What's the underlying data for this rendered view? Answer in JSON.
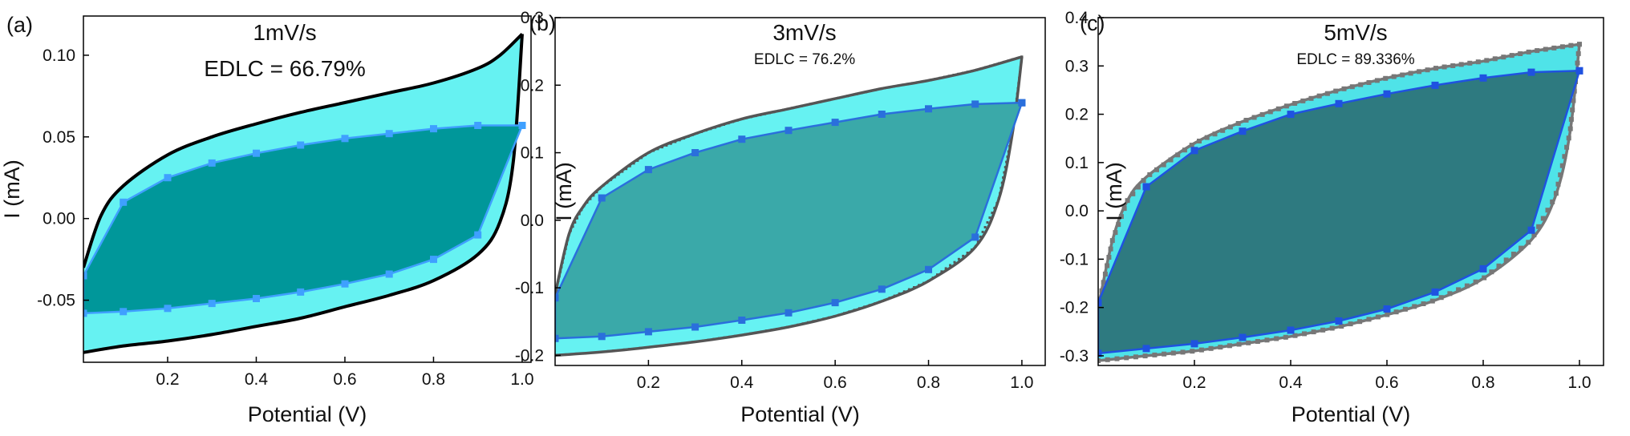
{
  "chart_data": [
    {
      "type": "line",
      "panel_label": "(a)",
      "annotation_rate": "1mV/s",
      "annotation_edlc": "EDLC = 66.79%",
      "xlabel": "Potential (V)",
      "ylabel": "I (mA)",
      "xlim": [
        0.01,
        1.02
      ],
      "ylim": [
        -0.088,
        0.124
      ],
      "xticks": [
        0.2,
        0.4,
        0.6,
        0.8,
        1.0
      ],
      "xtick_labels": [
        "0.2",
        "0.4",
        "0.6",
        "0.8",
        "1.0"
      ],
      "yticks": [
        -0.05,
        0.0,
        0.05,
        0.1
      ],
      "ytick_labels": [
        "-0.05",
        "0.00",
        "0.05",
        "0.10"
      ],
      "total_cv": {
        "upper": {
          "x": [
            0.01,
            0.05,
            0.1,
            0.2,
            0.3,
            0.4,
            0.5,
            0.6,
            0.7,
            0.8,
            0.9,
            0.95,
            1.0
          ],
          "y": [
            -0.03,
            0.002,
            0.02,
            0.039,
            0.05,
            0.058,
            0.065,
            0.071,
            0.077,
            0.083,
            0.092,
            0.1,
            0.113
          ]
        },
        "lower": {
          "x": [
            0.01,
            0.1,
            0.2,
            0.3,
            0.4,
            0.5,
            0.6,
            0.7,
            0.8,
            0.9,
            0.95,
            0.98,
            1.0
          ],
          "y": [
            -0.082,
            -0.078,
            -0.075,
            -0.071,
            -0.066,
            -0.061,
            -0.054,
            -0.047,
            -0.038,
            -0.022,
            -0.002,
            0.035,
            0.113
          ]
        }
      },
      "capacitive_cv": {
        "upper": {
          "x": [
            0.01,
            0.1,
            0.2,
            0.3,
            0.4,
            0.5,
            0.6,
            0.7,
            0.8,
            0.9,
            1.0
          ],
          "y": [
            -0.035,
            0.01,
            0.025,
            0.034,
            0.04,
            0.045,
            0.049,
            0.052,
            0.055,
            0.057,
            0.057
          ]
        },
        "lower": {
          "x": [
            0.01,
            0.1,
            0.2,
            0.3,
            0.4,
            0.5,
            0.6,
            0.7,
            0.8,
            0.9,
            1.0
          ],
          "y": [
            -0.058,
            -0.057,
            -0.055,
            -0.052,
            -0.049,
            -0.045,
            -0.04,
            -0.034,
            -0.025,
            -0.01,
            0.057
          ]
        }
      },
      "colors": {
        "outer_fill": "#66f2f2",
        "inner_fill": "#00979a",
        "outer_line": "#000000",
        "inner_line": "#3fa0ff",
        "inner_marker": "#3fa0ff"
      }
    },
    {
      "type": "line",
      "panel_label": "(b)",
      "annotation_rate": "3mV/s",
      "annotation_edlc": "EDLC = 76.2%",
      "xlabel": "Potential (V)",
      "ylabel": "I (mA)",
      "xlim": [
        0.0,
        1.05
      ],
      "ylim": [
        -0.215,
        0.3
      ],
      "xticks": [
        0.2,
        0.4,
        0.6,
        0.8,
        1.0
      ],
      "xtick_labels": [
        "0.2",
        "0.4",
        "0.6",
        "0.8",
        "1.0"
      ],
      "yticks": [
        -0.2,
        -0.1,
        0.0,
        0.1,
        0.2,
        0.3
      ],
      "ytick_labels": [
        "-0.2",
        "-0.1",
        "0.0",
        "0.1",
        "0.2",
        "0.3"
      ],
      "total_cv": {
        "upper": {
          "x": [
            0.0,
            0.03,
            0.06,
            0.1,
            0.2,
            0.3,
            0.4,
            0.5,
            0.6,
            0.7,
            0.8,
            0.9,
            1.0
          ],
          "y": [
            -0.11,
            -0.02,
            0.02,
            0.05,
            0.1,
            0.128,
            0.15,
            0.165,
            0.18,
            0.195,
            0.207,
            0.222,
            0.242
          ]
        },
        "lower": {
          "x": [
            0.0,
            0.1,
            0.2,
            0.3,
            0.4,
            0.5,
            0.6,
            0.7,
            0.8,
            0.9,
            0.95,
            0.98,
            1.0
          ],
          "y": [
            -0.2,
            -0.195,
            -0.188,
            -0.18,
            -0.17,
            -0.158,
            -0.142,
            -0.12,
            -0.09,
            -0.04,
            0.03,
            0.13,
            0.242
          ]
        }
      },
      "capacitive_cv": {
        "upper": {
          "x": [
            0.0,
            0.1,
            0.2,
            0.3,
            0.4,
            0.5,
            0.6,
            0.7,
            0.8,
            0.9,
            1.0
          ],
          "y": [
            -0.115,
            0.033,
            0.075,
            0.1,
            0.12,
            0.133,
            0.145,
            0.157,
            0.165,
            0.172,
            0.174
          ]
        },
        "lower": {
          "x": [
            0.0,
            0.1,
            0.2,
            0.3,
            0.4,
            0.5,
            0.6,
            0.7,
            0.8,
            0.9,
            1.0
          ],
          "y": [
            -0.175,
            -0.172,
            -0.165,
            -0.158,
            -0.148,
            -0.137,
            -0.122,
            -0.102,
            -0.073,
            -0.025,
            0.174
          ]
        }
      },
      "colors": {
        "outer_fill": "#66f2f2",
        "inner_fill": "#3aa9a9",
        "outer_line": "#555555",
        "inner_line": "#2a6fdc",
        "inner_marker": "#2a6fdc"
      }
    },
    {
      "type": "line",
      "panel_label": "(c)",
      "annotation_rate": "5mV/s",
      "annotation_edlc": "EDLC = 89.336%",
      "xlabel": "Potential (V)",
      "ylabel": "I (mA)",
      "xlim": [
        0.0,
        1.05
      ],
      "ylim": [
        -0.32,
        0.4
      ],
      "xticks": [
        0.2,
        0.4,
        0.6,
        0.8,
        1.0
      ],
      "xtick_labels": [
        "0.2",
        "0.4",
        "0.6",
        "0.8",
        "1.0"
      ],
      "yticks": [
        -0.3,
        -0.2,
        -0.1,
        0.0,
        0.1,
        0.2,
        0.3,
        0.4
      ],
      "ytick_labels": [
        "-0.3",
        "-0.2",
        "-0.1",
        "0.0",
        "0.1",
        "0.2",
        "0.3",
        "0.4"
      ],
      "total_cv": {
        "upper": {
          "x": [
            0.0,
            0.03,
            0.06,
            0.1,
            0.2,
            0.3,
            0.4,
            0.5,
            0.6,
            0.7,
            0.8,
            0.9,
            1.0
          ],
          "y": [
            -0.2,
            -0.06,
            0.02,
            0.07,
            0.14,
            0.185,
            0.22,
            0.25,
            0.275,
            0.295,
            0.31,
            0.33,
            0.345
          ]
        },
        "lower": {
          "x": [
            0.0,
            0.1,
            0.2,
            0.3,
            0.4,
            0.5,
            0.6,
            0.7,
            0.8,
            0.9,
            0.95,
            0.98,
            1.0
          ],
          "y": [
            -0.31,
            -0.3,
            -0.29,
            -0.275,
            -0.26,
            -0.24,
            -0.215,
            -0.185,
            -0.14,
            -0.06,
            0.03,
            0.16,
            0.345
          ]
        }
      },
      "capacitive_cv": {
        "upper": {
          "x": [
            0.0,
            0.1,
            0.2,
            0.3,
            0.4,
            0.5,
            0.6,
            0.7,
            0.8,
            0.9,
            1.0
          ],
          "y": [
            -0.19,
            0.05,
            0.125,
            0.165,
            0.2,
            0.222,
            0.242,
            0.26,
            0.275,
            0.287,
            0.29
          ]
        },
        "lower": {
          "x": [
            0.0,
            0.1,
            0.2,
            0.3,
            0.4,
            0.5,
            0.6,
            0.7,
            0.8,
            0.9,
            1.0
          ],
          "y": [
            -0.295,
            -0.285,
            -0.275,
            -0.262,
            -0.247,
            -0.228,
            -0.203,
            -0.168,
            -0.12,
            -0.04,
            0.29
          ]
        }
      },
      "colors": {
        "outer_fill": "#4fe3e8",
        "inner_fill": "#2e7a80",
        "outer_line": "#777777",
        "inner_line": "#1f52e0",
        "inner_marker": "#1f52e0"
      }
    }
  ]
}
